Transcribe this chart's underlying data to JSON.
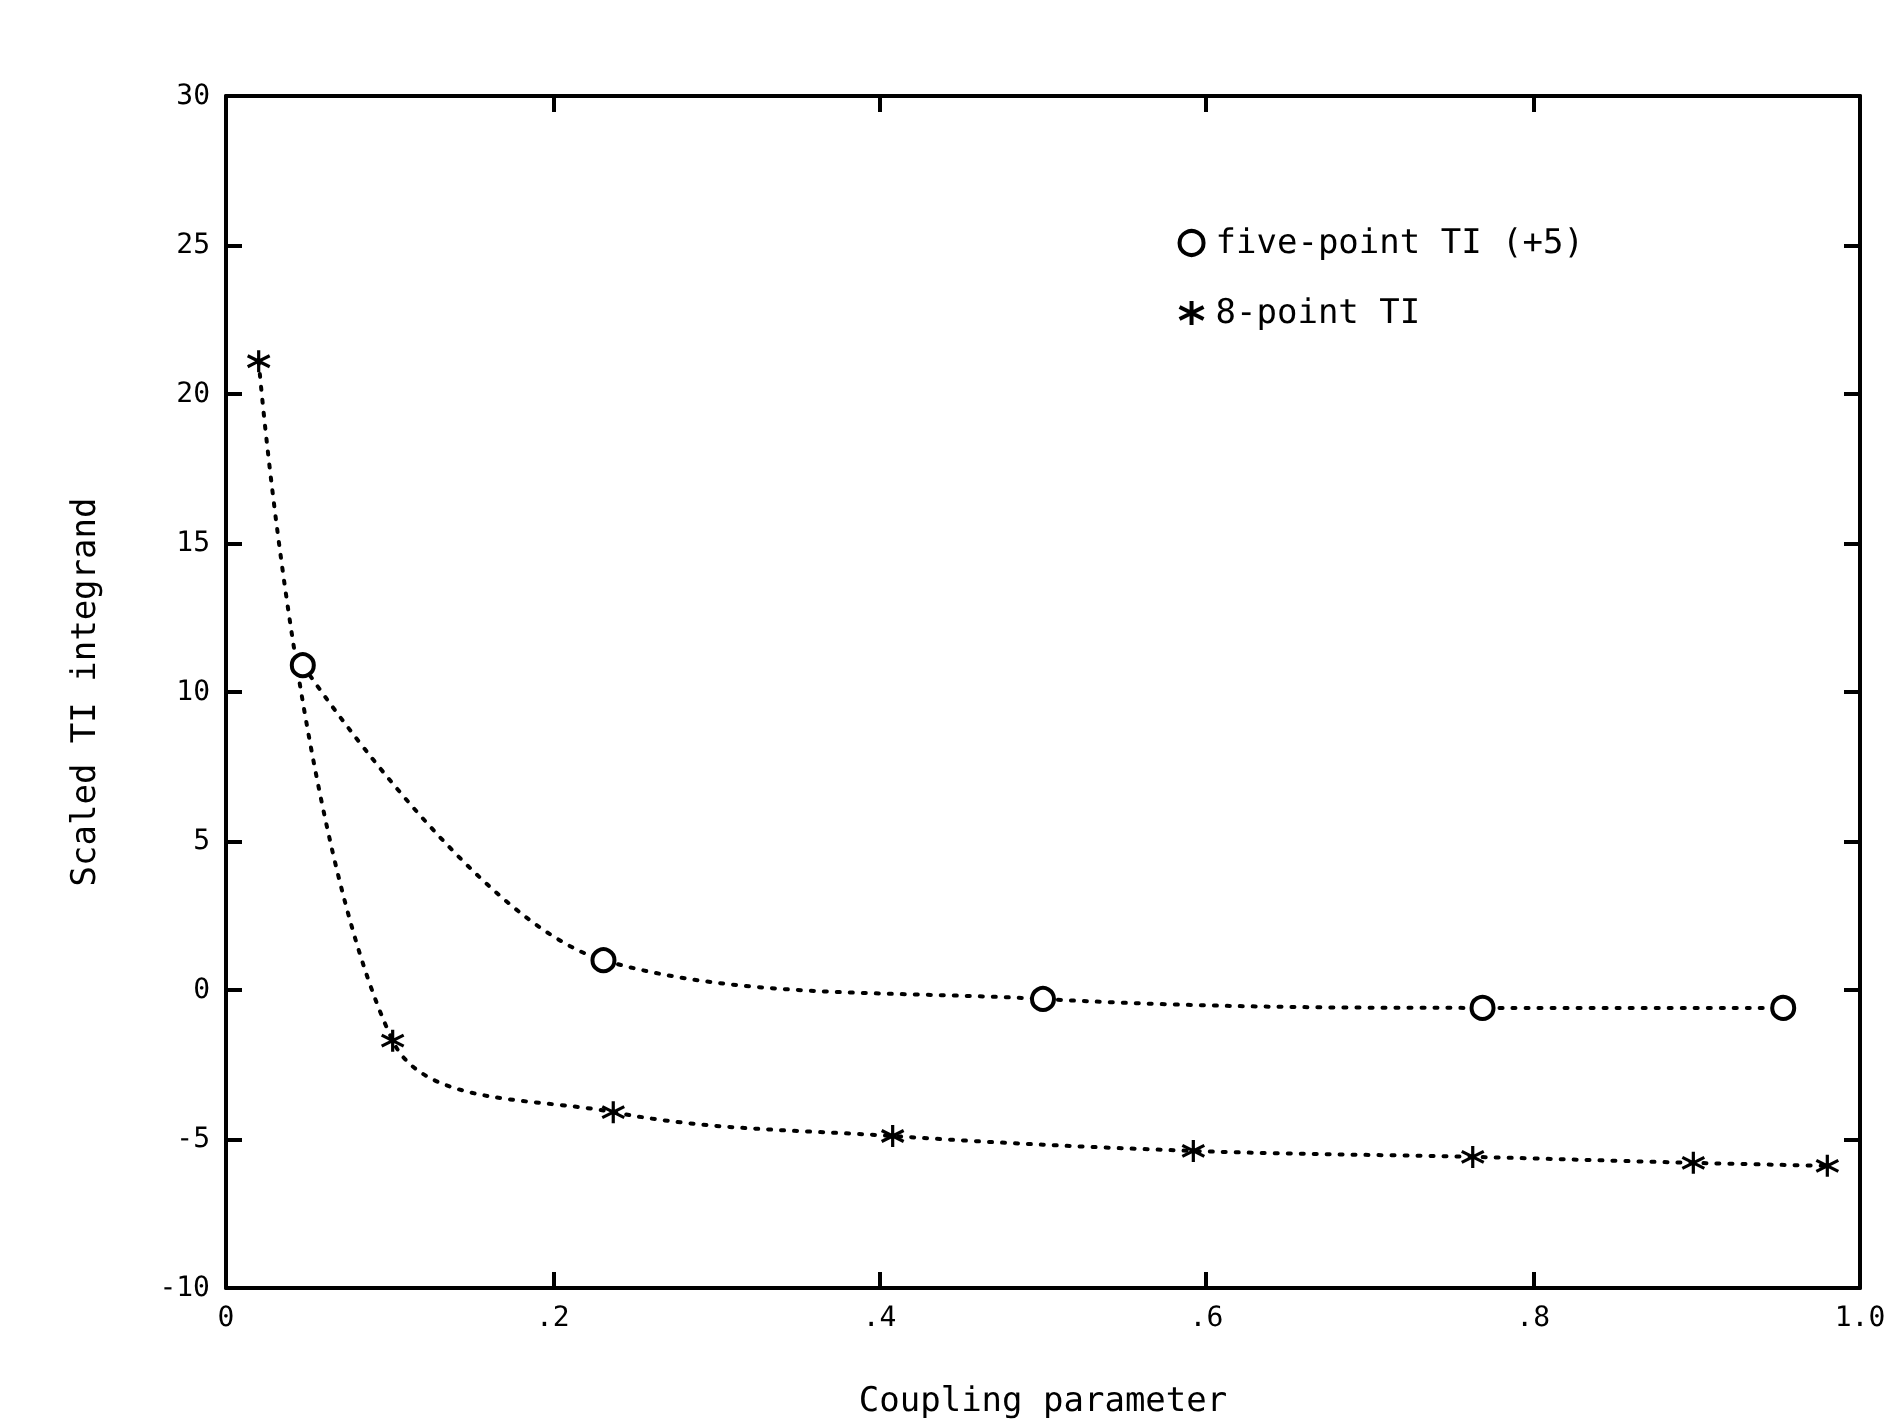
{
  "chart_data": {
    "type": "line",
    "xlabel": "Coupling parameter",
    "ylabel": "Scaled TI integrand",
    "xlim": [
      0,
      1
    ],
    "ylim": [
      -10,
      30
    ],
    "xticks": [
      0,
      {
        "value": 0.2,
        "label": ".2"
      },
      {
        "value": 0.4,
        "label": ".4"
      },
      {
        "value": 0.6,
        "label": ".6"
      },
      {
        "value": 0.8,
        "label": ".8"
      },
      {
        "value": 1,
        "label": "1.0"
      }
    ],
    "yticks": [
      -10,
      -5,
      0,
      5,
      10,
      15,
      20,
      25,
      30
    ],
    "grid": false,
    "legend": "top right",
    "line_style": "dotted",
    "series": [
      {
        "name": "five-point TI (+5)",
        "color": "#000000",
        "marker": "circle",
        "x": [
          0.047,
          0.231,
          0.5,
          0.769,
          0.953
        ],
        "values": [
          10.9,
          1.0,
          -0.3,
          -0.6,
          -0.6
        ]
      },
      {
        "name": "8-point TI",
        "color": "#000000",
        "marker": "cross",
        "x": [
          0.02,
          0.102,
          0.237,
          0.408,
          0.592,
          0.763,
          0.898,
          0.98
        ],
        "values": [
          21.1,
          -1.7,
          -4.1,
          -4.9,
          -5.4,
          -5.6,
          -5.8,
          -5.9
        ]
      }
    ]
  }
}
